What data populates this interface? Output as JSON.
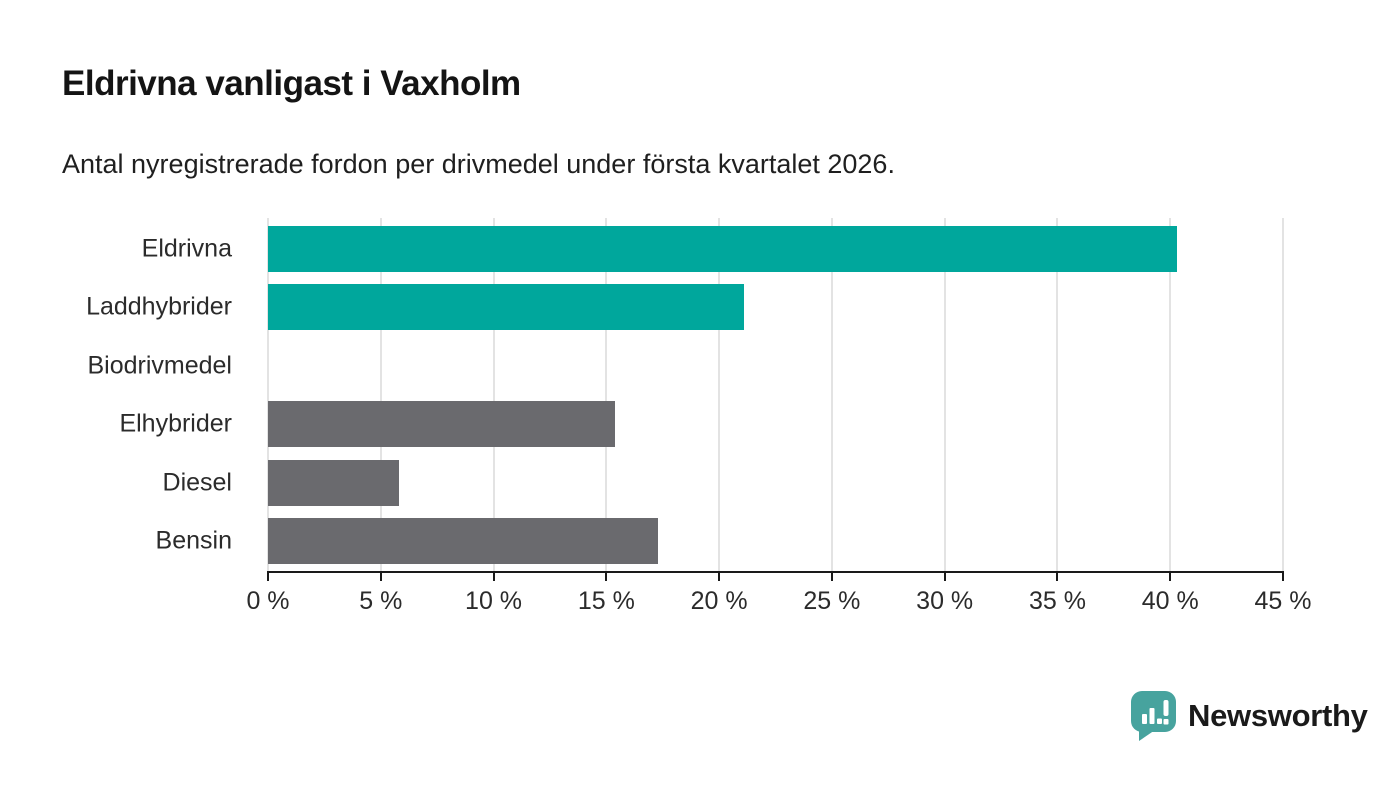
{
  "page": {
    "title": "Eldrivna vanligast i Vaxholm",
    "subtitle": "Antal nyregistrerade fordon per drivmedel under första kvartalet 2026."
  },
  "branding": {
    "logo_text": "Newsworthy",
    "logo_icon": "speech-bubble-bar-chart-icon",
    "logo_color": "#3f9e99"
  },
  "colors": {
    "highlight_bar": "#00a79c",
    "muted_bar": "#6a6a6e",
    "gridline": "#e3e3e3",
    "axis": "#1a1a1a",
    "label_text": "#2b2b2b"
  },
  "chart_data": {
    "type": "bar",
    "orientation": "horizontal",
    "title": "Eldrivna vanligast i Vaxholm",
    "subtitle": "Antal nyregistrerade fordon per drivmedel under första kvartalet 2026.",
    "categories": [
      "Eldrivna",
      "Laddhybrider",
      "Biodrivmedel",
      "Elhybrider",
      "Diesel",
      "Bensin"
    ],
    "values": [
      40.3,
      21.1,
      0,
      15.4,
      5.8,
      17.3
    ],
    "unit": "%",
    "bar_colors": [
      "#00a79c",
      "#00a79c",
      "#6a6a6e",
      "#6a6a6e",
      "#6a6a6e",
      "#6a6a6e"
    ],
    "xlabel": "",
    "ylabel": "",
    "xlim": [
      0,
      45
    ],
    "tick_values": [
      0,
      5,
      10,
      15,
      20,
      25,
      30,
      35,
      40,
      45
    ],
    "tick_labels": [
      "0 %",
      "5 %",
      "10 %",
      "15 %",
      "20 %",
      "25 %",
      "30 %",
      "35 %",
      "40 %",
      "45 %"
    ],
    "grid": true,
    "legend": false
  }
}
